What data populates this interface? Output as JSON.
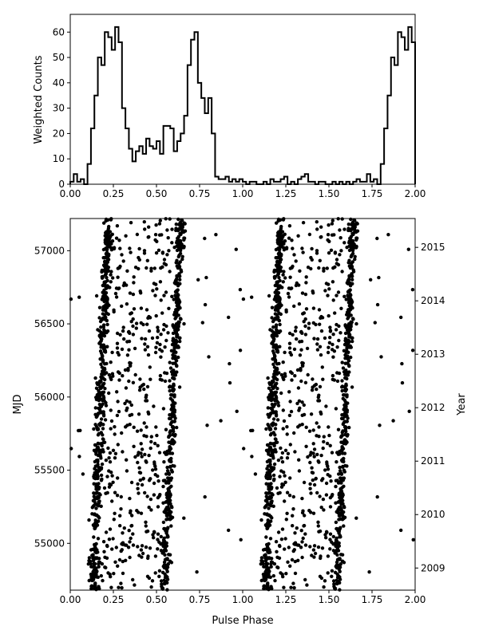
{
  "chart_data": [
    {
      "type": "line",
      "drawstyle": "steps",
      "xlabel": "",
      "ylabel": "Weighted Counts",
      "xlim": [
        0,
        2
      ],
      "ylim": [
        0,
        67
      ],
      "xticks": [
        "0.00",
        "0.25",
        "0.50",
        "0.75",
        "1.00",
        "1.25",
        "1.50",
        "1.75",
        "2.00"
      ],
      "yticks": [
        "0",
        "10",
        "20",
        "30",
        "40",
        "50",
        "60"
      ],
      "bin_width": 0.02,
      "values": [
        1,
        4,
        1,
        2,
        0,
        8,
        22,
        35,
        50,
        47,
        60,
        58,
        53,
        62,
        56,
        30,
        22,
        14,
        9,
        13,
        15,
        12,
        18,
        15,
        14,
        17,
        12,
        23,
        23,
        22,
        13,
        17,
        20,
        27,
        47,
        57,
        60,
        40,
        34,
        28,
        34,
        20,
        3,
        2,
        2,
        3,
        1,
        2,
        1,
        2,
        1,
        0,
        1,
        1,
        0,
        0,
        1,
        0,
        2,
        1,
        1,
        2,
        3,
        0,
        1,
        0,
        2,
        3,
        4,
        1,
        1,
        0,
        1,
        1,
        0,
        0,
        1,
        0,
        1,
        0,
        1,
        0,
        1,
        2,
        1
      ]
    },
    {
      "type": "scatter",
      "xlabel": "Pulse Phase",
      "ylabel": "MJD",
      "y2label": "Year",
      "xlim": [
        0,
        2
      ],
      "ylim": [
        54680,
        57220
      ],
      "xticks": [
        "0.00",
        "0.25",
        "0.50",
        "0.75",
        "1.00",
        "1.25",
        "1.50",
        "1.75",
        "2.00"
      ],
      "yticks": [
        "55000",
        "55500",
        "56000",
        "56500",
        "57000"
      ],
      "y2ticks": [
        "2009",
        "2010",
        "2011",
        "2012",
        "2013",
        "2014",
        "2015"
      ],
      "peaks": [
        {
          "phase_start": 0.135,
          "phase_end": 0.22
        },
        {
          "phase_start": 0.545,
          "phase_end": 0.645
        }
      ],
      "n_points": 1400,
      "points_repeat_every": 1.0
    }
  ]
}
